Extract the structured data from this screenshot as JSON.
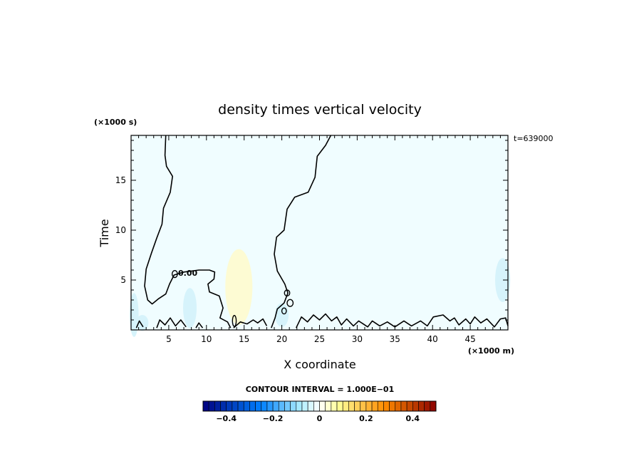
{
  "chart_data": {
    "type": "heatmap",
    "title": "density times vertical velocity",
    "xlabel": "X coordinate",
    "ylabel": "Time",
    "x_unit": "(×1000 m)",
    "y_unit": "(×1000 s)",
    "timestamp": "t=639000",
    "xlim": [
      0,
      50
    ],
    "ylim": [
      0,
      19.5
    ],
    "x_ticks": [
      5,
      10,
      15,
      20,
      25,
      30,
      35,
      40,
      45
    ],
    "y_ticks": [
      5,
      10,
      15
    ],
    "contour_label": "0.00",
    "contour_interval_text": "CONTOUR INTERVAL = 1.000E−01",
    "colorbar": {
      "min": -0.5,
      "max": 0.5,
      "n_levels": 40,
      "tick_values": [
        -0.4,
        -0.2,
        0,
        0.2,
        0.4
      ],
      "tick_labels": [
        "−0.4",
        "−0.2",
        "0",
        "0.2",
        "0.4"
      ],
      "colors": {
        "neg_dark": "#00007f",
        "neg_mid": "#0080ff",
        "neg_light": "#aeeeff",
        "zero": "#ffffff",
        "pos_light": "#ffff99",
        "pos_mid": "#ff8c00",
        "pos_dark": "#8b0000"
      }
    },
    "field_colors": {
      "background": "#f0fdff",
      "light_blue": "#d6f3fb",
      "pale_yellow": "#fdfbd3"
    },
    "zero_contour": [
      [
        [
          4.6,
          19.5
        ],
        [
          4.5,
          17.5
        ],
        [
          4.7,
          16.4
        ],
        [
          5.5,
          15.4
        ],
        [
          5.2,
          13.8
        ],
        [
          4.3,
          12.2
        ],
        [
          4.1,
          10.6
        ],
        [
          3.4,
          9.2
        ],
        [
          2.7,
          7.7
        ],
        [
          2.0,
          6.1
        ],
        [
          1.8,
          4.4
        ],
        [
          2.2,
          3.0
        ],
        [
          2.8,
          2.6
        ],
        [
          3.6,
          3.1
        ],
        [
          4.6,
          3.6
        ],
        [
          5.1,
          4.6
        ],
        [
          5.7,
          5.5
        ],
        [
          7.0,
          5.8
        ],
        [
          9.0,
          6.0
        ],
        [
          10.4,
          6.0
        ],
        [
          11.1,
          5.8
        ],
        [
          11.0,
          5.1
        ],
        [
          10.2,
          4.6
        ],
        [
          10.4,
          3.8
        ],
        [
          11.7,
          3.4
        ],
        [
          12.2,
          2.2
        ],
        [
          11.8,
          1.2
        ],
        [
          12.8,
          0.8
        ],
        [
          13.2,
          0.2
        ]
      ],
      [
        [
          26.5,
          19.5
        ],
        [
          25.8,
          18.5
        ],
        [
          24.7,
          17.4
        ],
        [
          24.4,
          15.3
        ],
        [
          23.5,
          13.8
        ],
        [
          21.7,
          13.3
        ],
        [
          20.7,
          12.1
        ],
        [
          20.3,
          10.0
        ],
        [
          19.3,
          9.3
        ],
        [
          19.0,
          7.6
        ],
        [
          19.4,
          5.9
        ],
        [
          20.4,
          4.6
        ],
        [
          20.8,
          3.7
        ],
        [
          20.3,
          2.7
        ],
        [
          19.4,
          2.1
        ],
        [
          19.1,
          1.2
        ],
        [
          18.6,
          0.2
        ]
      ],
      [
        [
          13.6,
          0.2
        ],
        [
          14.5,
          0.8
        ],
        [
          15.4,
          0.6
        ],
        [
          16.2,
          1.0
        ],
        [
          16.8,
          0.7
        ],
        [
          17.5,
          1.1
        ],
        [
          18.0,
          0.4
        ]
      ],
      [
        [
          21.9,
          0.2
        ],
        [
          22.6,
          1.3
        ],
        [
          23.4,
          0.8
        ],
        [
          24.2,
          1.5
        ],
        [
          25.0,
          1.0
        ],
        [
          25.8,
          1.6
        ],
        [
          26.6,
          0.9
        ],
        [
          27.3,
          1.3
        ],
        [
          27.9,
          0.5
        ],
        [
          28.6,
          1.1
        ],
        [
          29.5,
          0.4
        ],
        [
          30.2,
          0.9
        ],
        [
          31.4,
          0.3
        ],
        [
          32.0,
          0.9
        ],
        [
          33.0,
          0.4
        ],
        [
          34.0,
          0.8
        ],
        [
          35.0,
          0.3
        ],
        [
          36.2,
          0.9
        ],
        [
          37.2,
          0.4
        ],
        [
          38.4,
          0.9
        ],
        [
          39.3,
          0.4
        ],
        [
          40.1,
          1.3
        ],
        [
          41.4,
          1.5
        ],
        [
          42.3,
          0.9
        ],
        [
          42.9,
          1.2
        ],
        [
          43.5,
          0.5
        ],
        [
          44.4,
          1.1
        ],
        [
          45.0,
          0.6
        ],
        [
          45.6,
          1.3
        ],
        [
          46.4,
          0.7
        ],
        [
          47.2,
          1.1
        ],
        [
          48.2,
          0.3
        ],
        [
          49.0,
          1.1
        ],
        [
          49.7,
          1.2
        ],
        [
          50.0,
          0.4
        ]
      ],
      [
        [
          3.4,
          0.2
        ],
        [
          3.8,
          1.0
        ],
        [
          4.5,
          0.5
        ],
        [
          5.2,
          1.2
        ],
        [
          5.9,
          0.4
        ],
        [
          6.6,
          1.0
        ],
        [
          7.3,
          0.3
        ]
      ],
      [
        [
          0.7,
          0.2
        ],
        [
          1.1,
          0.9
        ],
        [
          1.6,
          0.3
        ]
      ],
      [
        [
          8.6,
          0.2
        ],
        [
          9.0,
          0.7
        ],
        [
          9.5,
          0.2
        ]
      ]
    ],
    "zero_contour_closed": [
      {
        "cx": 5.8,
        "cy": 5.6,
        "rx": 0.35,
        "ry": 0.35
      },
      {
        "cx": 13.7,
        "cy": 0.9,
        "rx": 0.25,
        "ry": 0.55
      },
      {
        "cx": 20.7,
        "cy": 3.7,
        "rx": 0.35,
        "ry": 0.3
      },
      {
        "cx": 21.1,
        "cy": 2.7,
        "rx": 0.4,
        "ry": 0.35
      },
      {
        "cx": 20.3,
        "cy": 1.9,
        "rx": 0.3,
        "ry": 0.3
      }
    ]
  }
}
